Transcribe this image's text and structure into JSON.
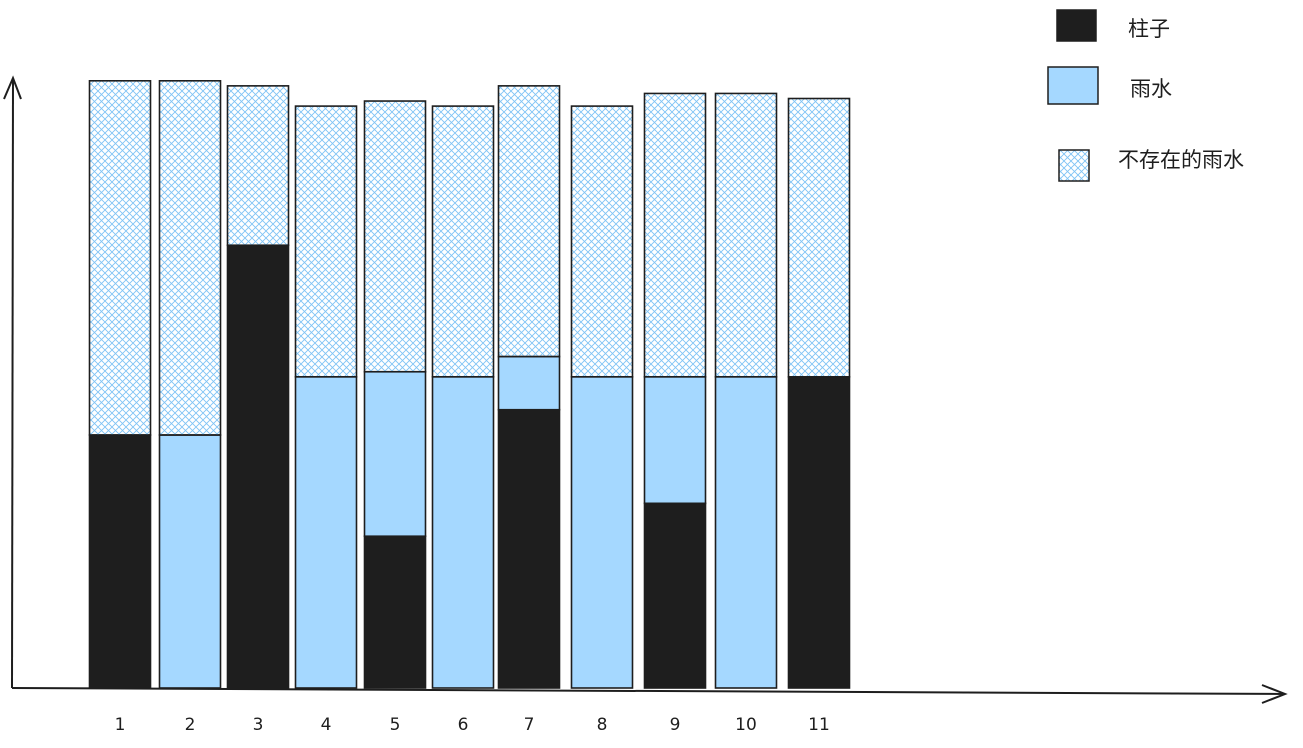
{
  "colors": {
    "pillar": "#1e1e1e",
    "water": "#a5d8ff",
    "hatch": "#a5d8ff",
    "stroke": "#1e1e1e",
    "axis": "#1e1e1e"
  },
  "chart_data": {
    "type": "bar",
    "stacked": true,
    "categories": [
      "1",
      "2",
      "3",
      "4",
      "5",
      "6",
      "7",
      "8",
      "9",
      "10",
      "11"
    ],
    "series": [
      {
        "name": "柱子",
        "values": [
          1,
          0,
          1.75,
          0,
          0.6,
          0,
          1.1,
          0,
          0.73,
          0,
          1.23
        ]
      },
      {
        "name": "雨水",
        "values": [
          0,
          1,
          0,
          1.23,
          0.65,
          1.23,
          0.21,
          1.23,
          0.5,
          1.23,
          0
        ]
      },
      {
        "name": "不存在的雨水",
        "values": [
          1.4,
          1.4,
          0.63,
          1.07,
          1.07,
          1.07,
          1.07,
          1.07,
          1.12,
          1.12,
          1.1
        ]
      }
    ]
  },
  "legend": {
    "items": [
      {
        "label": "柱子",
        "style": "solid-dark"
      },
      {
        "label": "雨水",
        "style": "solid-light"
      },
      {
        "label": "不存在的雨水",
        "style": "hatched"
      }
    ]
  }
}
